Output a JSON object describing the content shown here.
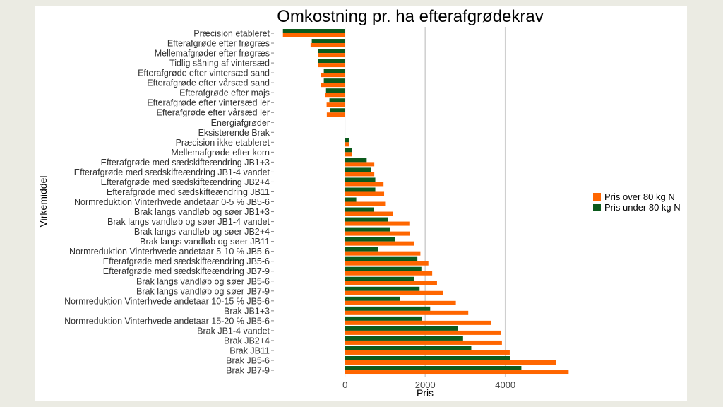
{
  "chart_data": {
    "type": "bar",
    "orientation": "horizontal",
    "title": "Omkostning pr. ha efterafgrødekrav",
    "xlabel": "Pris",
    "ylabel": "Virkemiddel",
    "xlim": [
      -1600,
      5700
    ],
    "xticks": [
      "0",
      "2000",
      "4000"
    ],
    "grid": "vertical major",
    "legend_position": "right",
    "categories": [
      "Præcision etableret",
      "Efterafgrøde efter frøgræs",
      "Mellemafgrøder efter frøgræs",
      "Tidlig såning af vintersæd",
      "Efterafgrøde efter vintersæd sand",
      "Efterafgrøde efter vårsæd sand",
      "Efterafgrøde efter majs",
      "Efterafgrøde efter vintersæd ler",
      "Efterafgrøde efter vårsæd ler",
      "Energiafgrøder",
      "Eksisterende Brak",
      "Præcision ikke etableret",
      "Mellemafgrøde efter korn",
      "Efterafgrøde med sædskifteændring JB1+3",
      "Efterafgrøde med sædskifteændring JB1-4 vandet",
      "Efterafgrøde med sædskifteændring JB2+4",
      "Efterafgrøde med sædskifteændring JB11",
      "Normreduktion Vinterhvede andetaar 0-5 % JB5-6",
      "Brak langs vandløb og søer JB1+3",
      "Brak langs vandløb og søer JB1-4 vandet",
      "Brak langs vandløb og søer JB2+4",
      "Brak langs vandløb og søer JB11",
      "Normreduktion Vinterhvede andetaar 5-10 % JB5-6",
      "Efterafgrøde med sædskifteændring JB5-6",
      "Efterafgrøde med sædskifteændring JB7-9",
      "Brak langs vandløb og søer JB5-6",
      "Brak langs vandløb og søer JB7-9",
      "Normreduktion Vinterhvede andetaar 10-15 % JB5-6",
      "Brak JB1+3",
      "Normreduktion Vinterhvede andetaar 15-20 % JB5-6",
      "Brak JB1-4 vandet",
      "Brak JB2+4",
      "Brak JB11",
      "Brak JB5-6",
      "Brak JB7-9"
    ],
    "series": [
      {
        "name": "Pris over 80 kg N",
        "color": "#ff6600",
        "values": [
          -1550,
          -860,
          -670,
          -670,
          -600,
          -595,
          -505,
          -460,
          -455,
          0,
          0,
          95,
          180,
          730,
          730,
          960,
          975,
          1000,
          1200,
          1605,
          1620,
          1715,
          1880,
          2080,
          2175,
          2295,
          2445,
          2765,
          3075,
          3640,
          3885,
          3915,
          4110,
          5270,
          5580
        ]
      },
      {
        "name": "Pris under 80 kg N",
        "color": "#0b5a1c",
        "values": [
          -1550,
          -830,
          -670,
          -670,
          -530,
          -530,
          -475,
          -390,
          -375,
          0,
          0,
          95,
          180,
          540,
          645,
          755,
          755,
          280,
          715,
          1065,
          1130,
          1240,
          825,
          1805,
          1905,
          1715,
          1860,
          1370,
          2125,
          1915,
          2810,
          2945,
          3150,
          4120,
          4400
        ]
      }
    ]
  }
}
